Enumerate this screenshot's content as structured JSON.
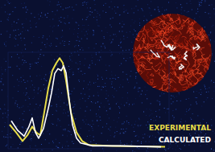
{
  "chart_data": {
    "type": "line",
    "xlim": [
      0,
      100
    ],
    "ylim": [
      0,
      1
    ],
    "tick_labels": false,
    "grid": false,
    "legend": "lower right",
    "series": [
      {
        "name": "EXPERIMENTAL",
        "color": "#e6dc48",
        "x": [
          1,
          5,
          9,
          12,
          15,
          17.5,
          20,
          22.5,
          25,
          27.5,
          30,
          32,
          34,
          36,
          39,
          42.5,
          46,
          50,
          65,
          97.5
        ],
        "values": [
          0.25,
          0.17,
          0.08,
          0.14,
          0.23,
          0.17,
          0.14,
          0.38,
          0.63,
          0.81,
          0.89,
          0.94,
          0.89,
          0.71,
          0.38,
          0.17,
          0.08,
          0.04,
          0.03,
          0.02
        ]
      },
      {
        "name": "CALCULATED",
        "color": "#ffffff",
        "x": [
          2,
          6,
          10,
          13,
          15,
          17,
          19,
          22,
          25,
          27,
          29,
          31,
          33,
          34.5,
          36,
          38,
          40,
          42.5,
          45,
          52.5,
          70,
          95
        ],
        "values": [
          0.29,
          0.19,
          0.13,
          0.23,
          0.32,
          0.17,
          0.11,
          0.21,
          0.42,
          0.58,
          0.78,
          0.83,
          0.81,
          0.86,
          0.79,
          0.5,
          0.25,
          0.11,
          0.06,
          0.03,
          0.03,
          0.02
        ]
      }
    ]
  }
}
